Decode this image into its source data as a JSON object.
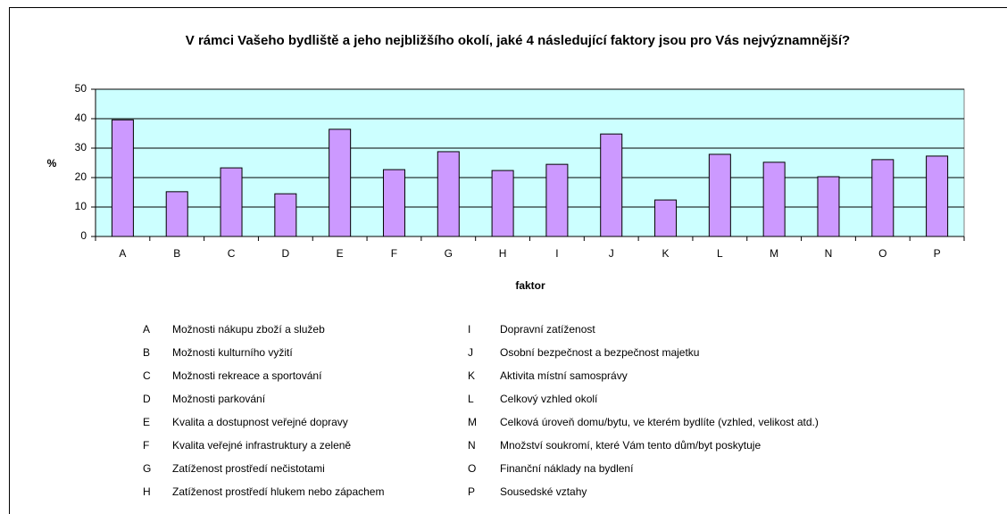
{
  "chart_data": {
    "type": "bar",
    "title": "V rámci Vašeho bydliště a jeho nejbližšího okolí, jaké 4 následující faktory jsou pro Vás nejvýznamnější?",
    "x_label": "faktor",
    "y_label": "%",
    "categories": [
      "A",
      "B",
      "C",
      "D",
      "E",
      "F",
      "G",
      "H",
      "I",
      "J",
      "K",
      "L",
      "M",
      "N",
      "O",
      "P"
    ],
    "values": [
      39.6,
      15.2,
      23.3,
      14.5,
      36.4,
      22.7,
      28.8,
      22.4,
      24.5,
      34.8,
      12.4,
      27.9,
      25.2,
      20.3,
      26.1,
      27.3
    ],
    "color": "#cc99ff",
    "plot_background": "#ccffff",
    "ylim": [
      0,
      50
    ],
    "yticks": [
      0,
      10,
      20,
      30,
      40,
      50
    ],
    "grid": true,
    "category_descriptions": [
      "Možnosti nákupu zboží a služeb",
      "Možnosti kulturního vyžití",
      "Možnosti rekreace a sportování",
      "Možnosti parkování",
      "Kvalita a dostupnost veřejné dopravy",
      "Kvalita veřejné infrastruktury a zeleně",
      "Zatíženost prostředí nečistotami",
      "Zatíženost prostředí hlukem nebo zápachem",
      "Dopravní zatíženost",
      "Osobní bezpečnost a bezpečnost majetku",
      "Aktivita místní samosprávy",
      "Celkový vzhled okolí",
      "Celková úroveň domu/bytu, ve kterém bydlíte (vzhled, velikost atd.)",
      "Množství soukromí, které Vám tento dům/byt poskytuje",
      "Finanční náklady na bydlení",
      "Sousedské vztahy"
    ]
  }
}
